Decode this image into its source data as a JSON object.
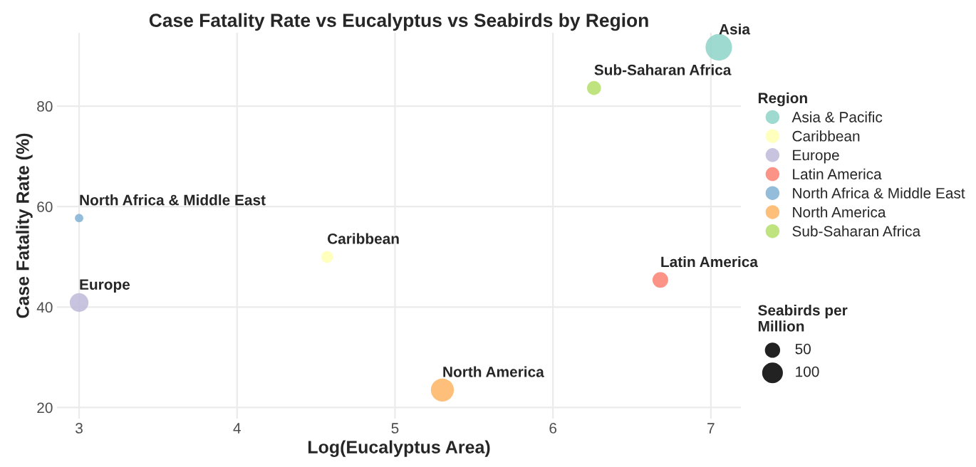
{
  "chart_data": {
    "type": "bubble",
    "title": "Case Fatality Rate vs Eucalyptus vs Seabirds by Region",
    "xlabel": "Log(Eucalyptus Area)",
    "ylabel": "Case Fatality Rate (%)",
    "legend_title": "Region",
    "series": [
      {
        "name": "Asia & Pacific",
        "color": "#8dd3c7",
        "x": [
          7.05
        ],
        "values": [
          91.7
        ],
        "sizes": [
          200
        ]
      },
      {
        "name": "Caribbean",
        "color": "#ffffb3",
        "x": [
          4.57
        ],
        "values": [
          50.0
        ],
        "sizes": [
          40
        ]
      },
      {
        "name": "Europe",
        "color": "#bebada",
        "x": [
          3.0
        ],
        "values": [
          40.9
        ],
        "sizes": [
          100
        ]
      },
      {
        "name": "Latin America",
        "color": "#fb8072",
        "x": [
          6.68
        ],
        "values": [
          45.4
        ],
        "sizes": [
          70
        ]
      },
      {
        "name": "North Africa & Middle East",
        "color": "#80b1d3",
        "x": [
          3.0
        ],
        "values": [
          57.7
        ],
        "sizes": [
          20
        ]
      },
      {
        "name": "North America",
        "color": "#fdb462",
        "x": [
          5.3
        ],
        "values": [
          23.5
        ],
        "sizes": [
          150
        ]
      },
      {
        "name": "Sub-Saharan Africa",
        "color": "#b3de69",
        "x": [
          6.26
        ],
        "values": [
          83.6
        ],
        "sizes": [
          55
        ]
      }
    ],
    "size_legend": [
      50,
      100
    ],
    "annotations": [
      {
        "text": "Asia",
        "x": 7.05,
        "y": 91.7
      },
      {
        "text": "Caribbean",
        "x": 4.57,
        "y": 50.0
      },
      {
        "text": "Europe",
        "x": 3.0,
        "y": 40.9
      },
      {
        "text": "Latin America",
        "x": 6.68,
        "y": 45.4
      },
      {
        "text": "North Africa & Middle East",
        "x": 3.0,
        "y": 57.7
      },
      {
        "text": "North America",
        "x": 5.3,
        "y": 23.5
      },
      {
        "text": "Sub-Saharan Africa",
        "x": 6.26,
        "y": 83.6
      },
      "Seabirds per\nMillion"
    ],
    "xlim": [
      2.86,
      7.19
    ],
    "ylim": [
      17.8,
      94.6
    ],
    "xticks": [
      3,
      4,
      5,
      6,
      7
    ],
    "yticks": [
      20,
      40,
      60,
      80
    ],
    "grid": true,
    "legend": "right"
  }
}
